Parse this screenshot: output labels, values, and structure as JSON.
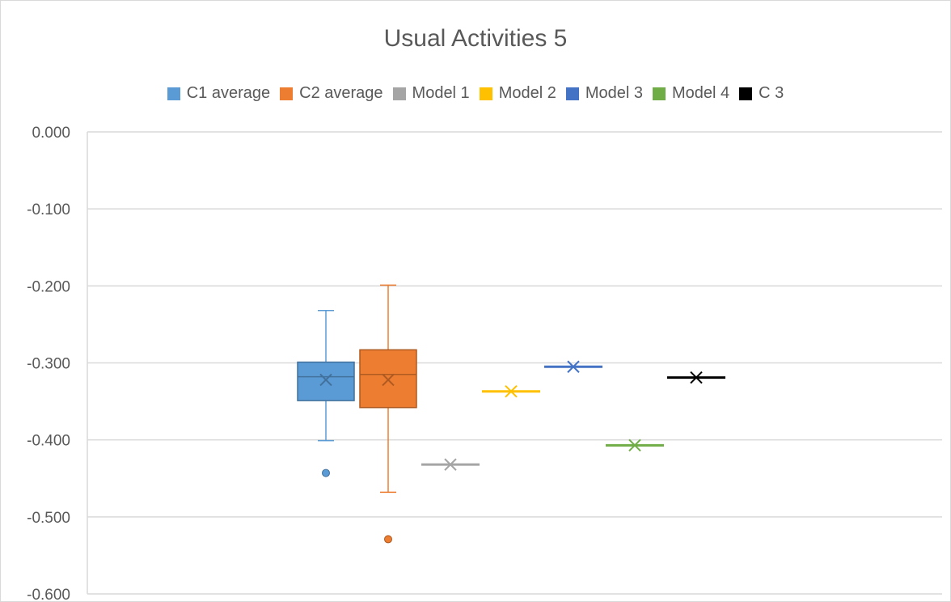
{
  "chart_data": {
    "type": "box",
    "title": "Usual Activities 5",
    "ylim": [
      -0.6,
      0.0
    ],
    "yticks": [
      "0.000",
      "-0.100",
      "-0.200",
      "-0.300",
      "-0.400",
      "-0.500",
      "-0.600"
    ],
    "grid": true,
    "legend_position": "top",
    "series": [
      {
        "name": "C1 average",
        "color": "#5b9bd5",
        "min": -0.401,
        "q1": -0.349,
        "median": -0.318,
        "q3": -0.299,
        "max": -0.232,
        "mean": -0.322,
        "outliers": [
          -0.443
        ]
      },
      {
        "name": "C2 average",
        "color": "#ed7d31",
        "min": -0.468,
        "q1": -0.358,
        "median": -0.315,
        "q3": -0.283,
        "max": -0.199,
        "mean": -0.322,
        "outliers": [
          -0.529
        ]
      },
      {
        "name": "Model 1",
        "color": "#a5a5a5",
        "value": -0.432
      },
      {
        "name": "Model 2",
        "color": "#ffc000",
        "value": -0.337
      },
      {
        "name": "Model 3",
        "color": "#4472c4",
        "value": -0.305
      },
      {
        "name": "Model 4",
        "color": "#70ad47",
        "value": -0.407
      },
      {
        "name": "C 3",
        "color": "#000000",
        "value": -0.319
      }
    ]
  }
}
